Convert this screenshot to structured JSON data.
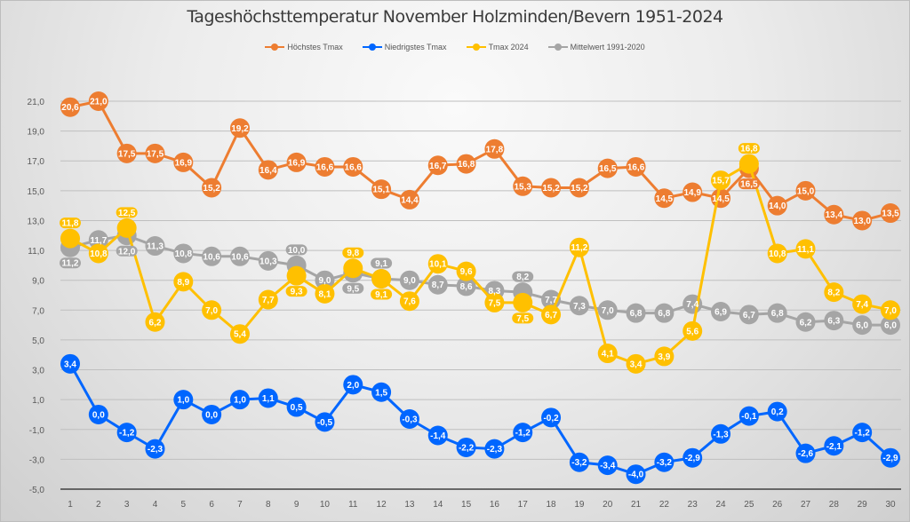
{
  "chart_data": {
    "type": "line",
    "title": "Tageshöchsttemperatur November Holzminden/Bevern 1951-2024",
    "xlabel": "",
    "ylabel": "",
    "x": [
      1,
      2,
      3,
      4,
      5,
      6,
      7,
      8,
      9,
      10,
      11,
      12,
      13,
      14,
      15,
      16,
      17,
      18,
      19,
      20,
      21,
      22,
      23,
      24,
      25,
      26,
      27,
      28,
      29,
      30
    ],
    "x_tick_labels": [
      "1",
      "2",
      "3",
      "4",
      "5",
      "6",
      "7",
      "8",
      "9",
      "10",
      "11",
      "12",
      "13",
      "14",
      "15",
      "16",
      "17",
      "18",
      "19",
      "20",
      "21",
      "22",
      "23",
      "24",
      "25",
      "26",
      "27",
      "28",
      "29",
      "30"
    ],
    "ylim": [
      -5,
      22
    ],
    "y_ticks": [
      -5,
      -3,
      -1,
      1,
      3,
      5,
      7,
      9,
      11,
      13,
      15,
      17,
      19,
      21
    ],
    "y_tick_labels": [
      "-5,0",
      "-3,0",
      "-1,0",
      "1,0",
      "3,0",
      "5,0",
      "7,0",
      "9,0",
      "11,0",
      "13,0",
      "15,0",
      "17,0",
      "19,0",
      "21,0"
    ],
    "grid": true,
    "legend_position": "top-center",
    "series": [
      {
        "name": "Höchstes Tmax",
        "color": "#ED7D31",
        "values": [
          20.6,
          21.0,
          17.5,
          17.5,
          16.9,
          15.2,
          19.2,
          16.4,
          16.9,
          16.6,
          16.6,
          15.1,
          14.4,
          16.7,
          16.8,
          17.8,
          15.3,
          15.2,
          15.2,
          16.5,
          16.6,
          14.5,
          14.9,
          14.5,
          16.5,
          14.0,
          15.0,
          13.4,
          13.0,
          13.5
        ]
      },
      {
        "name": "Niedrigstes Tmax",
        "color": "#0066FF",
        "values": [
          3.4,
          0.0,
          -1.2,
          -2.3,
          1.0,
          0.0,
          1.0,
          1.1,
          0.5,
          -0.5,
          2.0,
          1.5,
          -0.3,
          -1.4,
          -2.2,
          -2.3,
          -1.2,
          -0.2,
          -3.2,
          -3.4,
          -4.0,
          -3.2,
          -2.9,
          -1.3,
          -0.1,
          0.2,
          -2.6,
          -2.1,
          -1.2,
          -2.9
        ]
      },
      {
        "name": "Tmax 2024",
        "color": "#FFC000",
        "values": [
          11.8,
          10.8,
          12.5,
          6.2,
          8.9,
          7.0,
          5.4,
          7.7,
          9.3,
          8.1,
          9.8,
          9.1,
          7.6,
          10.1,
          9.6,
          7.5,
          7.5,
          6.7,
          11.2,
          4.1,
          3.4,
          3.9,
          5.6,
          15.7,
          16.8,
          10.8,
          11.1,
          8.2,
          7.4,
          7.0
        ]
      },
      {
        "name": "Mittelwert 1991-2020",
        "color": "#A5A5A5",
        "values": [
          11.2,
          11.7,
          12.0,
          11.3,
          10.8,
          10.6,
          10.6,
          10.3,
          10.0,
          9.0,
          9.5,
          9.1,
          9.0,
          8.7,
          8.6,
          8.3,
          8.2,
          7.7,
          7.3,
          7.0,
          6.8,
          6.8,
          7.4,
          6.9,
          6.7,
          6.8,
          6.2,
          6.3,
          6.0,
          6.0
        ]
      }
    ]
  }
}
